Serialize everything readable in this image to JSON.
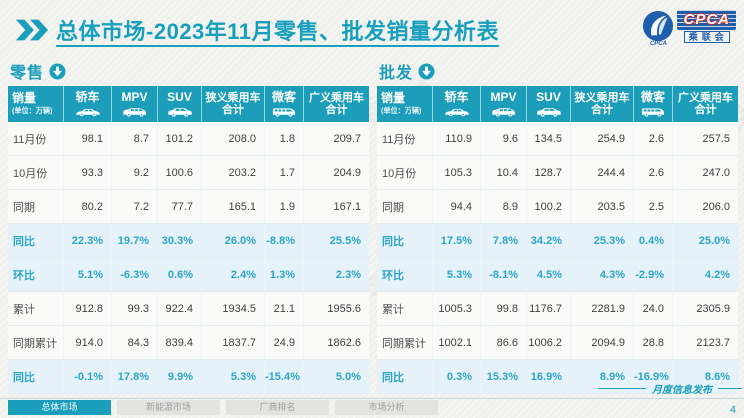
{
  "header": {
    "title_bold": "总体市场",
    "title_rest": "-2023年11月零售、批发销量分析表",
    "logo": {
      "main": "CPCA",
      "sub": "乘联会",
      "small": "CPCA"
    }
  },
  "table_columns": {
    "first": {
      "title": "销量",
      "unit": "(单位：万辆)"
    },
    "cols": [
      {
        "label": "轿车",
        "icon": "sedan-icon"
      },
      {
        "label": "MPV",
        "icon": "mpv-icon"
      },
      {
        "label": "SUV",
        "icon": "suv-icon"
      },
      {
        "line1": "狭义乘用车",
        "line2": "合计"
      },
      {
        "label": "微客",
        "icon": "minibus-icon"
      },
      {
        "line1": "广义乘用车",
        "line2": "合计"
      }
    ]
  },
  "tables": [
    {
      "id": "retail",
      "section": "零售",
      "rows": [
        {
          "label": "11月份",
          "values": [
            "98.1",
            "8.7",
            "101.2",
            "208.0",
            "1.8",
            "209.7"
          ],
          "highlight": false
        },
        {
          "label": "10月份",
          "values": [
            "93.3",
            "9.2",
            "100.6",
            "203.2",
            "1.7",
            "204.9"
          ],
          "highlight": false
        },
        {
          "label": "同期",
          "values": [
            "80.2",
            "7.2",
            "77.7",
            "165.1",
            "1.9",
            "167.1"
          ],
          "highlight": false
        },
        {
          "label": "同比",
          "values": [
            "22.3%",
            "19.7%",
            "30.3%",
            "26.0%",
            "-8.8%",
            "25.5%"
          ],
          "highlight": true
        },
        {
          "label": "环比",
          "values": [
            "5.1%",
            "-6.3%",
            "0.6%",
            "2.4%",
            "1.3%",
            "2.3%"
          ],
          "highlight": true
        },
        {
          "label": "累计",
          "values": [
            "912.8",
            "99.3",
            "922.4",
            "1934.5",
            "21.1",
            "1955.6"
          ],
          "highlight": false
        },
        {
          "label": "同期累计",
          "values": [
            "914.0",
            "84.3",
            "839.4",
            "1837.7",
            "24.9",
            "1862.6"
          ],
          "highlight": false
        },
        {
          "label": "同比",
          "values": [
            "-0.1%",
            "17.8%",
            "9.9%",
            "5.3%",
            "-15.4%",
            "5.0%"
          ],
          "highlight": true
        }
      ]
    },
    {
      "id": "wholesale",
      "section": "批发",
      "rows": [
        {
          "label": "11月份",
          "values": [
            "110.9",
            "9.6",
            "134.5",
            "254.9",
            "2.6",
            "257.5"
          ],
          "highlight": false
        },
        {
          "label": "10月份",
          "values": [
            "105.3",
            "10.4",
            "128.7",
            "244.4",
            "2.6",
            "247.0"
          ],
          "highlight": false
        },
        {
          "label": "同期",
          "values": [
            "94.4",
            "8.9",
            "100.2",
            "203.5",
            "2.5",
            "206.0"
          ],
          "highlight": false
        },
        {
          "label": "同比",
          "values": [
            "17.5%",
            "7.8%",
            "34.2%",
            "25.3%",
            "0.4%",
            "25.0%"
          ],
          "highlight": true
        },
        {
          "label": "环比",
          "values": [
            "5.3%",
            "-8.1%",
            "4.5%",
            "4.3%",
            "-2.9%",
            "4.2%"
          ],
          "highlight": true
        },
        {
          "label": "累计",
          "values": [
            "1005.3",
            "99.8",
            "1176.7",
            "2281.9",
            "24.0",
            "2305.9"
          ],
          "highlight": false
        },
        {
          "label": "同期累计",
          "values": [
            "1002.1",
            "86.6",
            "1006.2",
            "2094.9",
            "28.8",
            "2123.7"
          ],
          "highlight": false
        },
        {
          "label": "同比",
          "values": [
            "0.3%",
            "15.3%",
            "16.9%",
            "8.9%",
            "-16.9%",
            "8.6%"
          ],
          "highlight": true
        }
      ]
    }
  ],
  "footer": {
    "tabs": [
      {
        "name": "tab-overall-market",
        "label": "总体市场",
        "active": true
      },
      {
        "name": "tab-nev-market",
        "label": "新能源市场",
        "active": false
      },
      {
        "name": "tab-manufacturer-ranking",
        "label": "厂商排名",
        "active": false
      },
      {
        "name": "tab-market-analysis",
        "label": "市场分析",
        "active": false
      }
    ],
    "publication": "月度信息发布",
    "page_number": "4"
  },
  "watermark": "CPCA 乘联会",
  "colors": {
    "accent": "#1B9EBC",
    "header_bg": "#1C9DBA",
    "highlight_bg": "#E6F2F9",
    "highlight_text": "#2BA6CB",
    "logo_blue": "#1E5FAC",
    "logo_red": "#CC2A2A"
  }
}
